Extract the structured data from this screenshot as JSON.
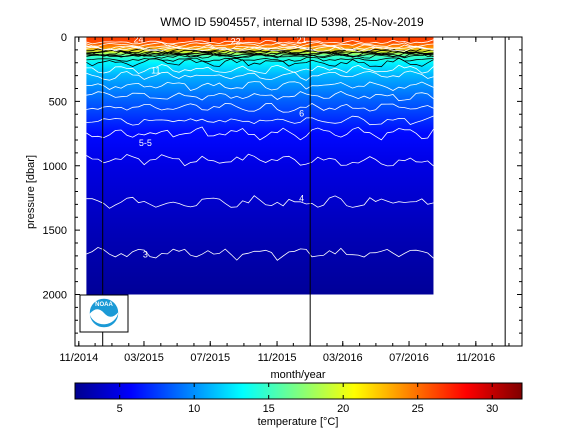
{
  "chart_data": {
    "type": "heatmap",
    "title": "WMO ID 5904557, internal ID 5398, 25-Nov-2019",
    "xlabel": "month/year",
    "ylabel": "pressure [dbar]",
    "x_ticks": [
      "11/2014",
      "03/2015",
      "07/2015",
      "11/2015",
      "03/2016",
      "07/2016",
      "11/2016"
    ],
    "x_range": [
      "2014-10-25",
      "2017-01-25"
    ],
    "y_ticks": [
      0,
      500,
      1000,
      1500,
      2000
    ],
    "y_range": [
      0,
      2400
    ],
    "y_reversed": true,
    "data_extent": {
      "x_start": "2014-11-15",
      "x_end": "2016-08-15",
      "p_max": 2000
    },
    "vertical_markers": [
      "2014-12-15",
      "2016-01-01",
      "2016-12-25"
    ],
    "colorbar": {
      "label": "temperature [°C]",
      "range": [
        2,
        32
      ],
      "ticks": [
        5,
        10,
        15,
        20,
        25,
        30
      ],
      "colormap": [
        "#00008f",
        "#0000ff",
        "#007fff",
        "#00ffff",
        "#7fff7f",
        "#ffff00",
        "#ff7f00",
        "#ff0000",
        "#7f0000"
      ]
    },
    "contour_labels": [
      "24",
      "22",
      "21",
      "11",
      "6",
      "5-5",
      "4",
      "3"
    ],
    "temperature_profile": [
      {
        "p": 0,
        "t": 26.5
      },
      {
        "p": 40,
        "t": 26
      },
      {
        "p": 80,
        "t": 24
      },
      {
        "p": 120,
        "t": 19
      },
      {
        "p": 150,
        "t": 15
      },
      {
        "p": 200,
        "t": 13
      },
      {
        "p": 300,
        "t": 11
      },
      {
        "p": 500,
        "t": 8.5
      },
      {
        "p": 750,
        "t": 6
      },
      {
        "p": 1000,
        "t": 4.8
      },
      {
        "p": 1500,
        "t": 3.4
      },
      {
        "p": 2000,
        "t": 2.3
      }
    ]
  },
  "logo": {
    "text": "NOAA"
  }
}
